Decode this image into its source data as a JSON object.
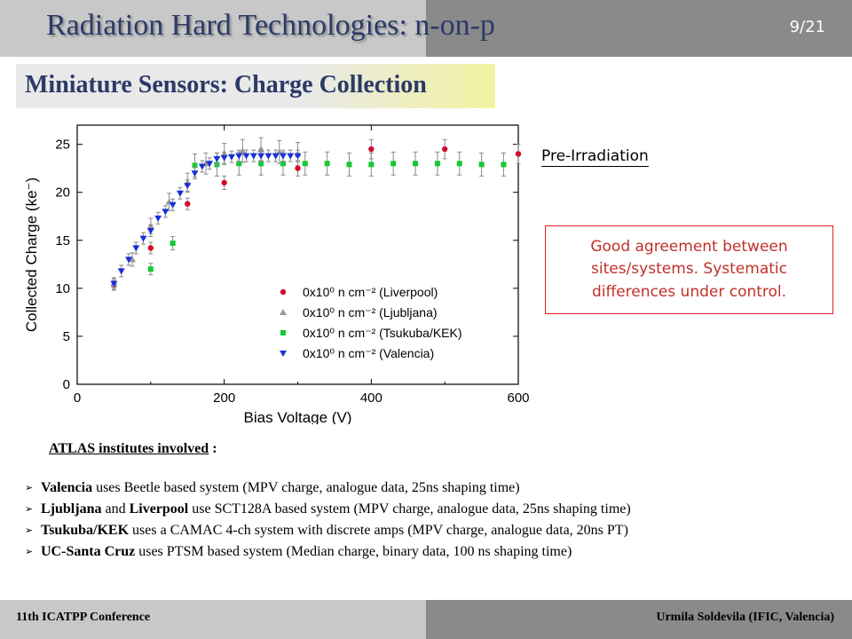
{
  "header": {
    "title": "Radiation Hard Technologies: n-on-p",
    "page": "9/21"
  },
  "section_title": "Miniature Sensors: Charge Collection",
  "pre_irradiation_label": "Pre-Irradiation",
  "agreement_note": "Good agreement between sites/systems. Systematic differences under control.",
  "institutes": {
    "heading": "ATLAS institutes involved",
    "heading_suffix": " :",
    "items": [
      {
        "name": "Valencia",
        "name2": "",
        "joiner": "",
        "text": " uses Beetle based system (MPV charge, analogue data, 25ns shaping time)"
      },
      {
        "name": "Ljubljana",
        "joiner": " and ",
        "name2": "Liverpool",
        "text": " use SCT128A based system (MPV charge, analogue data, 25ns shaping time)"
      },
      {
        "name": "Tsukuba/KEK",
        "name2": "",
        "joiner": "",
        "text": " uses a CAMAC 4-ch system with discrete amps (MPV charge, analogue data, 20ns PT)"
      },
      {
        "name": "UC-Santa Cruz",
        "name2": "",
        "joiner": "",
        "text": " uses PTSM based system (Median charge, binary data, 100 ns shaping time)"
      }
    ]
  },
  "footer": {
    "left": "11th ICATPP Conference",
    "right": "Urmila Soldevila (IFIC, Valencia)"
  },
  "chart_data": {
    "type": "scatter",
    "xlabel": "Bias Voltage (V)",
    "ylabel": "Collected Charge (ke⁻)",
    "xlim": [
      0,
      600
    ],
    "ylim": [
      0,
      27
    ],
    "xticks": [
      0,
      200,
      400,
      600
    ],
    "yticks": [
      0,
      5,
      10,
      15,
      20,
      25
    ],
    "legend_position": "lower-right",
    "series": [
      {
        "name": "0x10⁰ n cm⁻² (Liverpool)",
        "marker": "circle",
        "color": "#d0102a",
        "x": [
          50,
          100,
          150,
          200,
          300,
          400,
          500,
          600
        ],
        "y": [
          10.3,
          14.2,
          18.8,
          21.0,
          22.5,
          24.5,
          24.5,
          24.0
        ],
        "err": [
          0.5,
          0.6,
          0.6,
          0.7,
          0.8,
          1.0,
          1.0,
          1.0
        ]
      },
      {
        "name": "0x10⁰ n cm⁻² (Ljubljana)",
        "marker": "triangle-up",
        "color": "#999999",
        "x": [
          50,
          75,
          100,
          125,
          150,
          175,
          200,
          225,
          250,
          275,
          300
        ],
        "y": [
          10.4,
          13.0,
          16.5,
          19.0,
          21.0,
          23.0,
          24.0,
          24.3,
          24.5,
          24.2,
          24.0
        ],
        "err": [
          0.6,
          0.7,
          0.8,
          0.9,
          1.0,
          1.1,
          1.1,
          1.2,
          1.2,
          1.2,
          1.2
        ]
      },
      {
        "name": "0x10⁰ n cm⁻² (Tsukuba/KEK)",
        "marker": "square",
        "color": "#18c838",
        "x": [
          100,
          130,
          160,
          190,
          220,
          250,
          280,
          310,
          340,
          370,
          400,
          430,
          460,
          490,
          520,
          550,
          580
        ],
        "y": [
          12.0,
          14.7,
          22.8,
          22.9,
          23.0,
          23.0,
          23.0,
          23.0,
          23.0,
          22.9,
          22.9,
          23.0,
          23.0,
          23.0,
          23.0,
          22.9,
          22.9
        ],
        "err": [
          0.6,
          0.7,
          1.2,
          1.2,
          1.2,
          1.2,
          1.2,
          1.2,
          1.2,
          1.2,
          1.2,
          1.2,
          1.2,
          1.2,
          1.2,
          1.2,
          1.2
        ]
      },
      {
        "name": "0x10⁰ n cm⁻² (Valencia)",
        "marker": "triangle-down",
        "color": "#1830d8",
        "x": [
          50,
          60,
          70,
          80,
          90,
          100,
          110,
          120,
          130,
          140,
          150,
          160,
          170,
          180,
          190,
          200,
          210,
          220,
          230,
          240,
          250,
          260,
          270,
          280,
          290,
          300
        ],
        "y": [
          10.5,
          11.8,
          13.0,
          14.2,
          15.2,
          16.0,
          17.3,
          18.0,
          18.7,
          19.9,
          20.7,
          22.0,
          22.7,
          23.0,
          23.5,
          23.6,
          23.7,
          23.8,
          23.8,
          23.8,
          23.8,
          23.8,
          23.8,
          23.8,
          23.8,
          23.8
        ],
        "err": [
          0.6,
          0.6,
          0.6,
          0.6,
          0.6,
          0.6,
          0.6,
          0.6,
          0.6,
          0.6,
          0.6,
          0.6,
          0.6,
          0.6,
          0.6,
          0.6,
          0.6,
          0.6,
          0.6,
          0.6,
          0.6,
          0.6,
          0.6,
          0.6,
          0.6,
          0.6
        ]
      }
    ]
  }
}
